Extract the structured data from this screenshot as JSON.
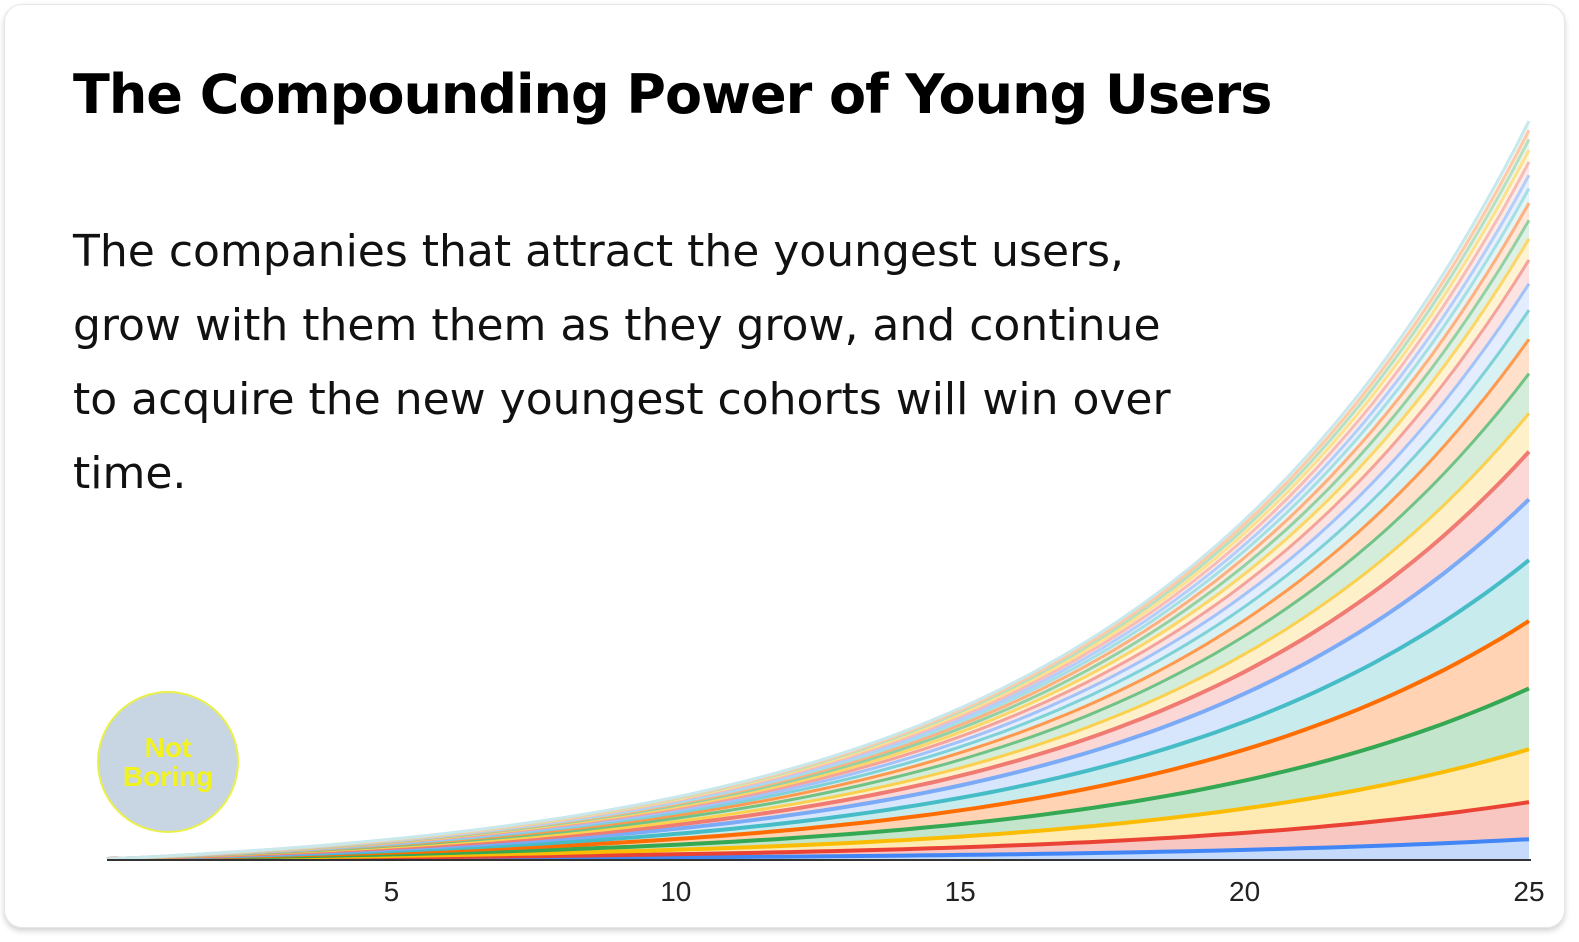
{
  "header": {
    "title": "The Compounding Power of Young Users",
    "description": "The companies that attract the youngest users, grow with them them as they grow, and continue to acquire the new youngest cohorts will win over time."
  },
  "badge": {
    "text": "Not Boring"
  },
  "chart_data": {
    "type": "area",
    "stacked": true,
    "title": "",
    "xlabel": "",
    "ylabel": "",
    "xlim": [
      0,
      25
    ],
    "x_ticks": [
      "5",
      "10",
      "15",
      "20",
      "25"
    ],
    "grid": false,
    "legend": "none",
    "series_count": 24,
    "series_colors": [
      "#4285f4",
      "#ea4335",
      "#fbbc04",
      "#34a853",
      "#ff6d01",
      "#46bdc6",
      "#7baaf7",
      "#f07b72",
      "#fcd04f",
      "#71c287",
      "#ff994d",
      "#7ed1d7",
      "#a1c2fa",
      "#f4a29c",
      "#fdd66a",
      "#93d1a5",
      "#ffb07f",
      "#a5dfe3",
      "#b3cefb",
      "#f7bcb7",
      "#fee08f",
      "#b7e0c2",
      "#ffc9a6",
      "#c8e8ec"
    ],
    "x": [
      1,
      5,
      10,
      15,
      20,
      25
    ],
    "series_values_at_x25": [
      15,
      28,
      40,
      46,
      51,
      46,
      46,
      36,
      29,
      30,
      26,
      22,
      20,
      18,
      16,
      14,
      13,
      11,
      10,
      10,
      9,
      8,
      7,
      7
    ]
  }
}
